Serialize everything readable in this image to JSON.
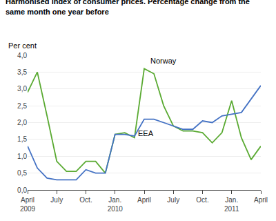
{
  "chart_data": {
    "type": "line",
    "title": "Harmonised index of consumer prices. Percentage change from the\nsame month one year before",
    "ylabel": "Per cent",
    "categories": [
      "April\n2009",
      null,
      null,
      "July",
      null,
      null,
      "Oct.",
      null,
      null,
      "Jan.\n2010",
      null,
      null,
      "April",
      null,
      null,
      "July",
      null,
      null,
      "Oct.",
      null,
      null,
      "Jan.\n2011",
      null,
      null,
      "April"
    ],
    "series": [
      {
        "name": "Norway",
        "color": "#5aaa32",
        "values": [
          2.9,
          3.5,
          2.2,
          0.85,
          0.55,
          0.55,
          0.85,
          0.85,
          0.5,
          1.65,
          1.7,
          1.55,
          3.6,
          3.45,
          2.5,
          1.9,
          1.75,
          1.75,
          1.7,
          1.4,
          1.7,
          2.65,
          1.55,
          0.9,
          1.3
        ]
      },
      {
        "name": "EEA",
        "color": "#4472c4",
        "values": [
          1.3,
          0.65,
          0.35,
          0.3,
          0.3,
          0.3,
          0.6,
          0.5,
          0.5,
          1.65,
          1.65,
          1.6,
          2.1,
          2.1,
          2.0,
          1.9,
          1.8,
          1.8,
          2.05,
          2.0,
          2.2,
          2.25,
          2.3,
          2.7,
          3.1
        ]
      }
    ],
    "ylim": [
      0.0,
      4.0
    ],
    "yticks": [
      {
        "value": 0.0,
        "label": "0,0"
      },
      {
        "value": 0.5,
        "label": "0,5"
      },
      {
        "value": 1.0,
        "label": "1,0"
      },
      {
        "value": 1.5,
        "label": "1,5"
      },
      {
        "value": 2.0,
        "label": "2,0"
      },
      {
        "value": 2.5,
        "label": "2,5"
      },
      {
        "value": 3.0,
        "label": "3,0"
      },
      {
        "value": 3.5,
        "label": "3,5"
      },
      {
        "value": 4.0,
        "label": "4,0"
      }
    ],
    "grid": true,
    "annotations": [
      {
        "text": "Norway",
        "x": 12.5,
        "y": 3.68
      },
      {
        "text": "EEA",
        "x": 11.2,
        "y": 1.52
      }
    ]
  }
}
